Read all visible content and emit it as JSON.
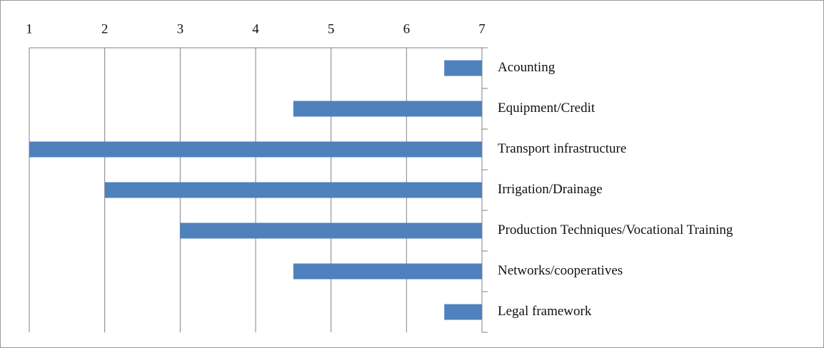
{
  "chart_data": {
    "type": "hbar",
    "categories": [
      "Acounting",
      "Equipment/Credit",
      "Transport infrastructure",
      "Irrigation/Drainage",
      "Production Techniques/Vocational Training",
      "Networks/cooperatives",
      "Legal framework"
    ],
    "values": [
      6.5,
      4.5,
      1,
      2,
      3,
      4.5,
      6.5
    ],
    "color": "#4f81bd",
    "xlim": [
      1,
      7
    ],
    "xticks": [
      1,
      2,
      3,
      4,
      5,
      6,
      7
    ],
    "grid": true
  }
}
